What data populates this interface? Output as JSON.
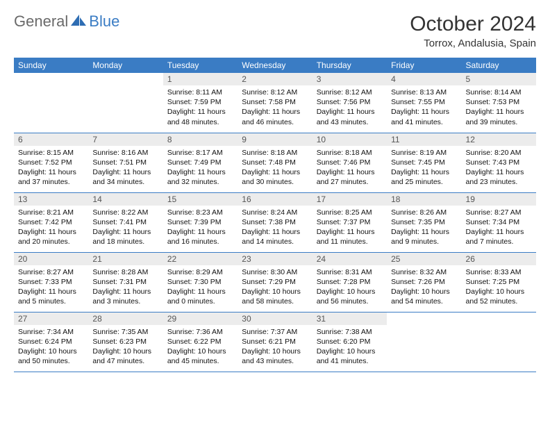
{
  "brand": {
    "part1": "General",
    "part2": "Blue"
  },
  "title": "October 2024",
  "location": "Torrox, Andalusia, Spain",
  "colors": {
    "header_bg": "#3a7cc4",
    "header_text": "#ffffff",
    "daynum_bg": "#ececec",
    "daynum_text": "#555555",
    "cell_border": "#3a7cc4",
    "body_text": "#111111",
    "logo_gray": "#6a6a6a",
    "logo_blue": "#3a7cc4",
    "background": "#ffffff"
  },
  "typography": {
    "title_fontsize": 30,
    "location_fontsize": 15,
    "dayheader_fontsize": 12,
    "cell_fontsize": 10.5
  },
  "dayHeaders": [
    "Sunday",
    "Monday",
    "Tuesday",
    "Wednesday",
    "Thursday",
    "Friday",
    "Saturday"
  ],
  "weeks": [
    [
      null,
      null,
      {
        "n": "1",
        "sunrise": "8:11 AM",
        "sunset": "7:59 PM",
        "dlh": "11",
        "dlm": "48"
      },
      {
        "n": "2",
        "sunrise": "8:12 AM",
        "sunset": "7:58 PM",
        "dlh": "11",
        "dlm": "46"
      },
      {
        "n": "3",
        "sunrise": "8:12 AM",
        "sunset": "7:56 PM",
        "dlh": "11",
        "dlm": "43"
      },
      {
        "n": "4",
        "sunrise": "8:13 AM",
        "sunset": "7:55 PM",
        "dlh": "11",
        "dlm": "41"
      },
      {
        "n": "5",
        "sunrise": "8:14 AM",
        "sunset": "7:53 PM",
        "dlh": "11",
        "dlm": "39"
      }
    ],
    [
      {
        "n": "6",
        "sunrise": "8:15 AM",
        "sunset": "7:52 PM",
        "dlh": "11",
        "dlm": "37"
      },
      {
        "n": "7",
        "sunrise": "8:16 AM",
        "sunset": "7:51 PM",
        "dlh": "11",
        "dlm": "34"
      },
      {
        "n": "8",
        "sunrise": "8:17 AM",
        "sunset": "7:49 PM",
        "dlh": "11",
        "dlm": "32"
      },
      {
        "n": "9",
        "sunrise": "8:18 AM",
        "sunset": "7:48 PM",
        "dlh": "11",
        "dlm": "30"
      },
      {
        "n": "10",
        "sunrise": "8:18 AM",
        "sunset": "7:46 PM",
        "dlh": "11",
        "dlm": "27"
      },
      {
        "n": "11",
        "sunrise": "8:19 AM",
        "sunset": "7:45 PM",
        "dlh": "11",
        "dlm": "25"
      },
      {
        "n": "12",
        "sunrise": "8:20 AM",
        "sunset": "7:43 PM",
        "dlh": "11",
        "dlm": "23"
      }
    ],
    [
      {
        "n": "13",
        "sunrise": "8:21 AM",
        "sunset": "7:42 PM",
        "dlh": "11",
        "dlm": "20"
      },
      {
        "n": "14",
        "sunrise": "8:22 AM",
        "sunset": "7:41 PM",
        "dlh": "11",
        "dlm": "18"
      },
      {
        "n": "15",
        "sunrise": "8:23 AM",
        "sunset": "7:39 PM",
        "dlh": "11",
        "dlm": "16"
      },
      {
        "n": "16",
        "sunrise": "8:24 AM",
        "sunset": "7:38 PM",
        "dlh": "11",
        "dlm": "14"
      },
      {
        "n": "17",
        "sunrise": "8:25 AM",
        "sunset": "7:37 PM",
        "dlh": "11",
        "dlm": "11"
      },
      {
        "n": "18",
        "sunrise": "8:26 AM",
        "sunset": "7:35 PM",
        "dlh": "11",
        "dlm": "9"
      },
      {
        "n": "19",
        "sunrise": "8:27 AM",
        "sunset": "7:34 PM",
        "dlh": "11",
        "dlm": "7"
      }
    ],
    [
      {
        "n": "20",
        "sunrise": "8:27 AM",
        "sunset": "7:33 PM",
        "dlh": "11",
        "dlm": "5"
      },
      {
        "n": "21",
        "sunrise": "8:28 AM",
        "sunset": "7:31 PM",
        "dlh": "11",
        "dlm": "3"
      },
      {
        "n": "22",
        "sunrise": "8:29 AM",
        "sunset": "7:30 PM",
        "dlh": "11",
        "dlm": "0"
      },
      {
        "n": "23",
        "sunrise": "8:30 AM",
        "sunset": "7:29 PM",
        "dlh": "10",
        "dlm": "58"
      },
      {
        "n": "24",
        "sunrise": "8:31 AM",
        "sunset": "7:28 PM",
        "dlh": "10",
        "dlm": "56"
      },
      {
        "n": "25",
        "sunrise": "8:32 AM",
        "sunset": "7:26 PM",
        "dlh": "10",
        "dlm": "54"
      },
      {
        "n": "26",
        "sunrise": "8:33 AM",
        "sunset": "7:25 PM",
        "dlh": "10",
        "dlm": "52"
      }
    ],
    [
      {
        "n": "27",
        "sunrise": "7:34 AM",
        "sunset": "6:24 PM",
        "dlh": "10",
        "dlm": "50"
      },
      {
        "n": "28",
        "sunrise": "7:35 AM",
        "sunset": "6:23 PM",
        "dlh": "10",
        "dlm": "47"
      },
      {
        "n": "29",
        "sunrise": "7:36 AM",
        "sunset": "6:22 PM",
        "dlh": "10",
        "dlm": "45"
      },
      {
        "n": "30",
        "sunrise": "7:37 AM",
        "sunset": "6:21 PM",
        "dlh": "10",
        "dlm": "43"
      },
      {
        "n": "31",
        "sunrise": "7:38 AM",
        "sunset": "6:20 PM",
        "dlh": "10",
        "dlm": "41"
      },
      null,
      null
    ]
  ],
  "labels": {
    "sunrise": "Sunrise:",
    "sunset": "Sunset:",
    "daylight_prefix": "Daylight:",
    "hours_word": "hours",
    "and_word": "and",
    "minutes_word": "minutes."
  }
}
